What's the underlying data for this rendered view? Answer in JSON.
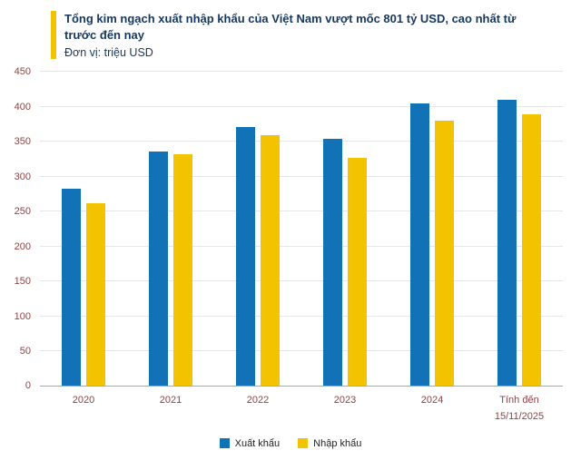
{
  "header": {
    "title": "Tổng kim ngạch xuất nhập khẩu của Việt Nam vượt mốc 801 tỷ USD, cao nhất từ trước đến nay",
    "subtitle": "Đơn vị: triệu USD",
    "accent_color": "#F4C300",
    "title_color": "#17375E"
  },
  "chart_data": {
    "type": "bar",
    "categories": [
      "2020",
      "2021",
      "2022",
      "2023",
      "2024",
      "Tính đến\n15/11/2025"
    ],
    "series": [
      {
        "name": "Xuất khẩu",
        "color": "#1272B8",
        "values": [
          283,
          336,
          371,
          354,
          405,
          410
        ]
      },
      {
        "name": "Nhập khẩu",
        "color": "#F4C300",
        "values": [
          262,
          332,
          359,
          327,
          380,
          390
        ]
      }
    ],
    "ylim": [
      0,
      450
    ],
    "yticks": [
      0,
      50,
      100,
      150,
      200,
      250,
      300,
      350,
      400,
      450
    ],
    "grid": true,
    "legend_position": "bottom",
    "axis_label_color": "#8E4444"
  }
}
